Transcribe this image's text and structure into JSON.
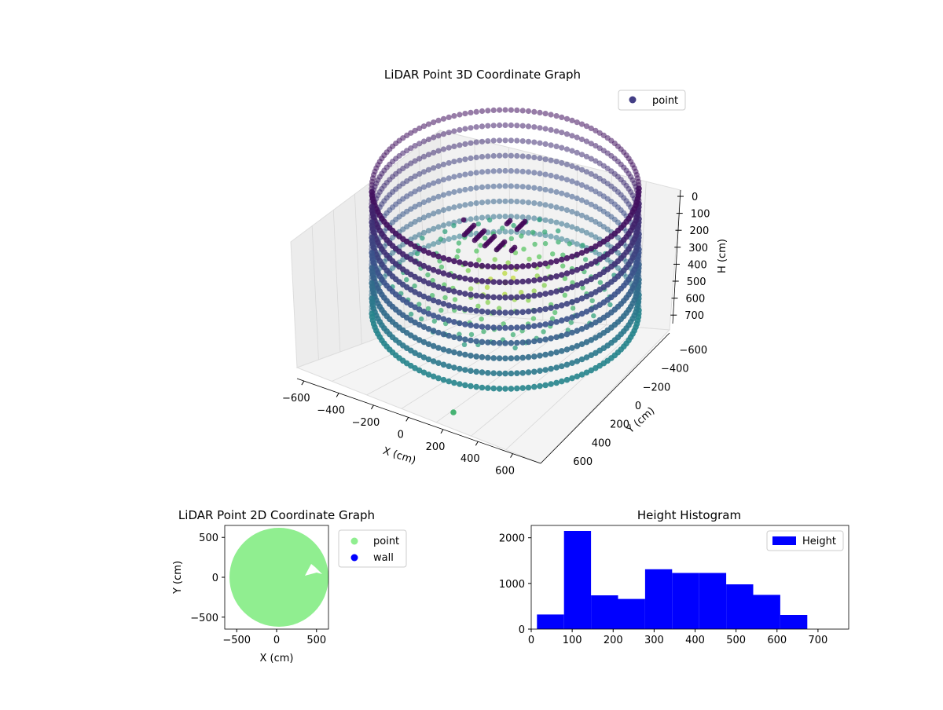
{
  "colors": {
    "point_3d_legend": "#433e85",
    "point_2d": "#90ee90",
    "wall_2d": "#0000ff",
    "histogram": "#0000ff",
    "viridis": [
      "#440154",
      "#3b528b",
      "#21918c",
      "#5ec962",
      "#fde725"
    ]
  },
  "chart_data": [
    {
      "type": "scatter",
      "title": "LiDAR Point 3D Coordinate Graph",
      "xlabel": "X (cm)",
      "ylabel": "Y (cm)",
      "zlabel": "H (cm)",
      "x_ticks": [
        "−600",
        "−400",
        "−200",
        "0",
        "200",
        "400",
        "600"
      ],
      "y_ticks": [
        "−600",
        "−400",
        "−200",
        "0",
        "200",
        "400",
        "600"
      ],
      "z_ticks": [
        "0",
        "100",
        "200",
        "300",
        "400",
        "500",
        "600",
        "700"
      ],
      "xlim": [
        -650,
        650
      ],
      "ylim": [
        -650,
        650
      ],
      "zlim": [
        0,
        750
      ],
      "z_axis_inverted": true,
      "colormap": "viridis",
      "legend": [
        "point"
      ],
      "legend_position": "upper right",
      "grid": true,
      "shape": "cylindrical wall of points (radius approx. 600 cm, height approx. 0-700 cm) with interior floor points; one isolated point near x≈200, y≈-650"
    },
    {
      "type": "scatter",
      "title": "LiDAR Point 2D Coordinate Graph",
      "xlabel": "X (cm)",
      "ylabel": "Y (cm)",
      "x_ticks": [
        "−500",
        "0",
        "500"
      ],
      "y_ticks": [
        "500",
        "0",
        "−500"
      ],
      "xlim": [
        -650,
        650
      ],
      "ylim": [
        -650,
        650
      ],
      "legend": [
        "point",
        "wall"
      ],
      "legend_position": "outside right",
      "shape": "filled disk of points, radius approx. 600 cm, with a small gap near x≈450, y≈50"
    },
    {
      "type": "bar",
      "title": "Height Histogram",
      "legend": [
        "Height"
      ],
      "legend_position": "upper right",
      "x_ticks": [
        "0",
        "100",
        "200",
        "300",
        "400",
        "500",
        "600",
        "700"
      ],
      "y_ticks": [
        "0",
        "1000",
        "2000"
      ],
      "xlim": [
        0,
        775
      ],
      "ylim": [
        0,
        2270
      ],
      "bin_edges": [
        14,
        80,
        146,
        212,
        278,
        344,
        410,
        476,
        542,
        608,
        674,
        740
      ],
      "counts": [
        320,
        2150,
        740,
        660,
        1310,
        1230,
        1230,
        980,
        750,
        310,
        0
      ]
    }
  ]
}
